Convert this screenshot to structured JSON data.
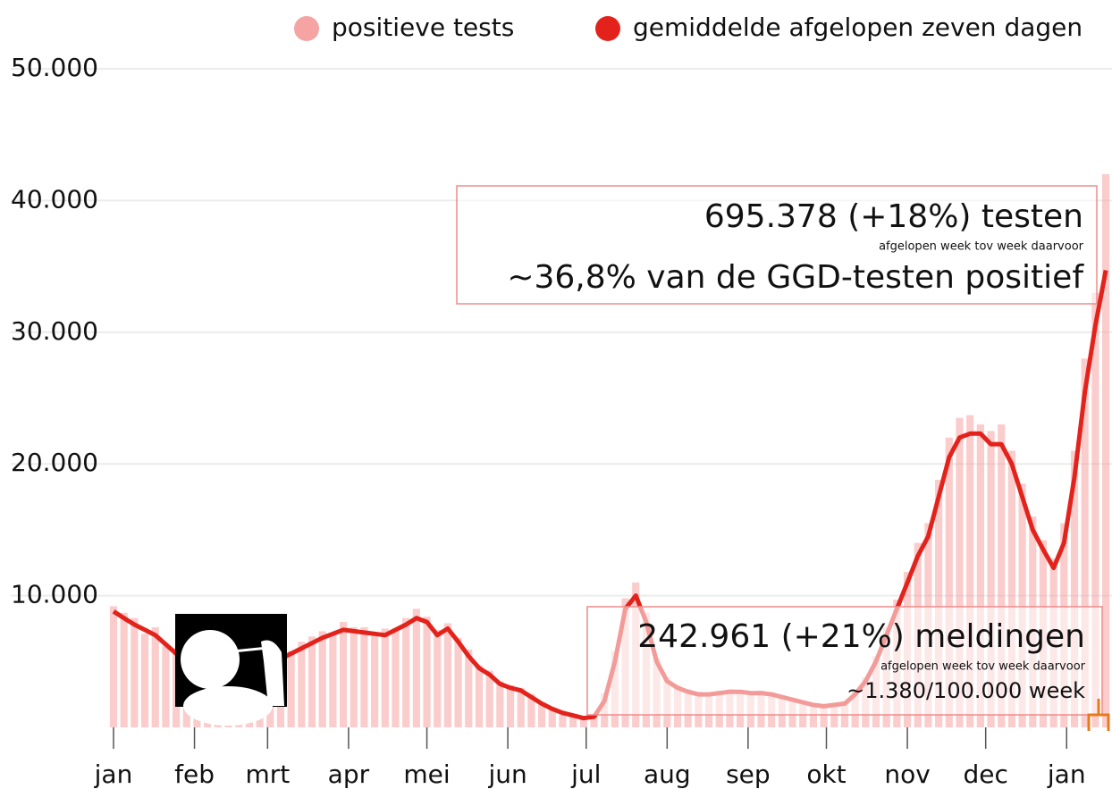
{
  "chart_data": {
    "type": "bar-line",
    "x": [
      0,
      4,
      8,
      12,
      16,
      20,
      24,
      28,
      32,
      36,
      40,
      44,
      48,
      52,
      56,
      60,
      64,
      68,
      72,
      76,
      80,
      84,
      88,
      92,
      96,
      100,
      104,
      108,
      112,
      116,
      120,
      124,
      128,
      132,
      136,
      140,
      144,
      148,
      152,
      156,
      160,
      164,
      168,
      172,
      176,
      180,
      184,
      188,
      192,
      196,
      200,
      204,
      208,
      212,
      216,
      220,
      224,
      228,
      232,
      236,
      240,
      244,
      248,
      252,
      256,
      260,
      264,
      268,
      272,
      276,
      280,
      284,
      288,
      292,
      296,
      300,
      304,
      308,
      312,
      316,
      320,
      324,
      328,
      332,
      336,
      340,
      344,
      348,
      352,
      356,
      360,
      364,
      368,
      372,
      376,
      380
    ],
    "series": [
      {
        "name": "positieve tests",
        "color": "#f5a3a3",
        "kind": "bar",
        "values": [
          9200,
          8700,
          8300,
          7100,
          7600,
          6200,
          6000,
          5400,
          5700,
          5100,
          5000,
          4600,
          4900,
          4300,
          4800,
          5000,
          5600,
          5800,
          6500,
          6900,
          7300,
          7100,
          8000,
          7600,
          7600,
          7200,
          7500,
          7300,
          8300,
          9000,
          8400,
          7400,
          7900,
          6800,
          5900,
          4700,
          4300,
          3500,
          3200,
          3000,
          2500,
          1900,
          1500,
          1200,
          1000,
          800,
          900,
          2600,
          5800,
          9800,
          11000,
          8700,
          5300,
          3800,
          3200,
          2900,
          2700,
          2600,
          2800,
          2900,
          2800,
          2700,
          2800,
          2600,
          2400,
          2200,
          2000,
          1800,
          1700,
          1800,
          2000,
          2800,
          3800,
          5400,
          7600,
          9700,
          11800,
          14000,
          15500,
          18800,
          22000,
          23500,
          23700,
          23000,
          22500,
          23000,
          21000,
          18500,
          16000,
          14200,
          12800,
          15500,
          21000,
          28000,
          33000,
          42000
        ]
      },
      {
        "name": "gemiddelde afgelopen zeven dagen",
        "color": "#e3231b",
        "kind": "line",
        "values": [
          8800,
          8300,
          7800,
          7400,
          7000,
          6300,
          5600,
          5400,
          5200,
          5000,
          4800,
          4650,
          4500,
          4500,
          4500,
          4800,
          5200,
          5600,
          6000,
          6400,
          6800,
          7100,
          7400,
          7300,
          7200,
          7100,
          7000,
          7400,
          7800,
          8300,
          8000,
          7000,
          7500,
          6500,
          5400,
          4500,
          4000,
          3300,
          3000,
          2800,
          2300,
          1800,
          1400,
          1100,
          900,
          700,
          800,
          2000,
          5000,
          9000,
          10000,
          8000,
          5000,
          3500,
          3000,
          2700,
          2500,
          2500,
          2600,
          2700,
          2700,
          2600,
          2600,
          2500,
          2300,
          2100,
          1900,
          1700,
          1600,
          1700,
          1800,
          2500,
          3500,
          5000,
          7000,
          9000,
          11000,
          13000,
          14500,
          17500,
          20500,
          22000,
          22300,
          22300,
          21500,
          21500,
          20000,
          17500,
          15000,
          13500,
          12100,
          14000,
          19000,
          25500,
          30500,
          34700
        ]
      }
    ],
    "xlim": [
      0,
      381
    ],
    "xticks": [
      {
        "value": 0,
        "label": "jan"
      },
      {
        "value": 31,
        "label": "feb"
      },
      {
        "value": 59,
        "label": "mrt"
      },
      {
        "value": 90,
        "label": "apr"
      },
      {
        "value": 120,
        "label": "mei"
      },
      {
        "value": 151,
        "label": "jun"
      },
      {
        "value": 181,
        "label": "jul"
      },
      {
        "value": 212,
        "label": "aug"
      },
      {
        "value": 243,
        "label": "sep"
      },
      {
        "value": 273,
        "label": "okt"
      },
      {
        "value": 304,
        "label": "nov"
      },
      {
        "value": 334,
        "label": "dec"
      },
      {
        "value": 365,
        "label": "jan"
      }
    ],
    "ylim": [
      0,
      50000
    ],
    "yticks": [
      {
        "value": 10000,
        "label": "10.000"
      },
      {
        "value": 20000,
        "label": "20.000"
      },
      {
        "value": 30000,
        "label": "30.000"
      },
      {
        "value": 40000,
        "label": "40.000"
      },
      {
        "value": 50000,
        "label": "50.000"
      }
    ],
    "grid": true,
    "legend": "top-right",
    "annotations": [
      {
        "title": "695.378 (+18%) testen",
        "note": "afgelopen week tov week daarvoor",
        "detail": "~36,8% van de GGD-testen positief"
      },
      {
        "title": "242.961 (+21%) meldingen",
        "note": "afgelopen week tov week daarvoor",
        "detail": "~1.380/100.000 week"
      }
    ]
  }
}
